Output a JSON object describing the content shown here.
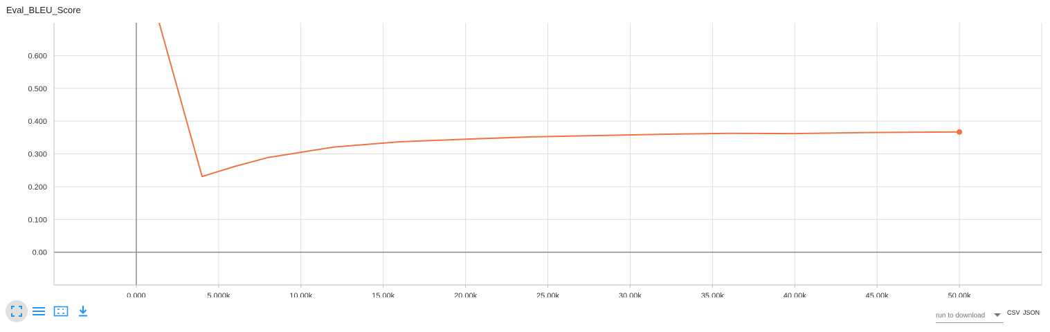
{
  "title": "Eval_BLEU_Score",
  "chart_data": {
    "type": "line",
    "title": "Eval_BLEU_Score",
    "xlabel": "",
    "ylabel": "",
    "xlim": [
      -5000,
      55000
    ],
    "ylim": [
      -0.1,
      0.7
    ],
    "x_ticks": [
      0,
      5000,
      10000,
      15000,
      20000,
      25000,
      30000,
      35000,
      40000,
      45000,
      50000
    ],
    "x_tick_labels": [
      "0.000",
      "5.000k",
      "10.00k",
      "15.00k",
      "20.00k",
      "25.00k",
      "30.00k",
      "35.00k",
      "40.00k",
      "45.00k",
      "50.00k"
    ],
    "y_ticks": [
      0,
      0.1,
      0.2,
      0.3,
      0.4,
      0.5,
      0.6
    ],
    "y_tick_labels": [
      "0.00",
      "0.100",
      "0.200",
      "0.300",
      "0.400",
      "0.500",
      "0.600"
    ],
    "grid": true,
    "series": [
      {
        "color": "#f07442",
        "x": [
          1000,
          4000,
          6000,
          8000,
          12000,
          16000,
          20000,
          24000,
          28000,
          32000,
          36000,
          40000,
          44000,
          50000
        ],
        "y": [
          0.77,
          0.231,
          0.262,
          0.289,
          0.321,
          0.337,
          0.345,
          0.352,
          0.356,
          0.36,
          0.363,
          0.362,
          0.365,
          0.367
        ]
      }
    ]
  },
  "toolbar": {
    "fit_icon": "fit-to-screen-icon",
    "log_icon": "log-scale-icon",
    "domain_icon": "toggle-y-domain-icon",
    "download_icon": "download-icon"
  },
  "download": {
    "placeholder": "run to download",
    "csv_label": "CSV",
    "json_label": "JSON"
  }
}
